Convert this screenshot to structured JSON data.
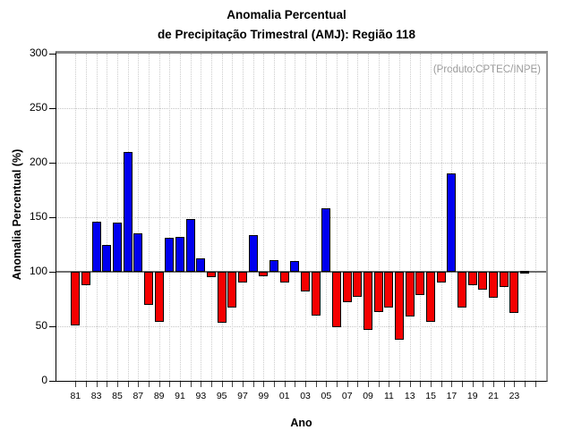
{
  "title": {
    "line1": "Anomalia Percentual",
    "line2": "de Precipitação Trimestral (AMJ): Região 118"
  },
  "annotation": "(Produto:CPTEC/INPE)",
  "chart_data": {
    "type": "bar",
    "title": "Anomalia Percentual de Precipitação Trimestral (AMJ): Região 118",
    "xlabel": "Ano",
    "ylabel": "Anomalia Percentual (%)",
    "ylim": [
      0,
      300
    ],
    "yticks": [
      0,
      50,
      100,
      150,
      200,
      250,
      300
    ],
    "baseline": 100,
    "grid": "dotted",
    "legend_position": "none",
    "colors": {
      "above_baseline": "#0000f0",
      "below_baseline": "#f50000",
      "at_baseline": "#000000",
      "annotation": "#999999"
    },
    "years": [
      1981,
      1982,
      1983,
      1984,
      1985,
      1986,
      1987,
      1988,
      1989,
      1990,
      1991,
      1992,
      1993,
      1994,
      1995,
      1996,
      1997,
      1998,
      1999,
      2000,
      2001,
      2002,
      2003,
      2004,
      2005,
      2006,
      2007,
      2008,
      2009,
      2010,
      2011,
      2012,
      2013,
      2014,
      2015,
      2016,
      2017,
      2018,
      2019,
      2020,
      2021,
      2022,
      2023,
      2024
    ],
    "values": [
      51,
      88,
      146,
      125,
      145,
      210,
      135,
      70,
      54,
      131,
      132,
      148,
      112,
      95,
      53,
      67,
      90,
      134,
      96,
      111,
      90,
      110,
      82,
      60,
      158,
      49,
      72,
      77,
      47,
      63,
      67,
      38,
      59,
      79,
      54,
      90,
      190,
      67,
      88,
      84,
      76,
      86,
      62,
      100
    ],
    "xtick_labels": [
      "81",
      "83",
      "85",
      "87",
      "89",
      "91",
      "93",
      "95",
      "97",
      "99",
      "01",
      "03",
      "05",
      "07",
      "09",
      "11",
      "13",
      "15",
      "17",
      "19",
      "21",
      "23"
    ]
  }
}
